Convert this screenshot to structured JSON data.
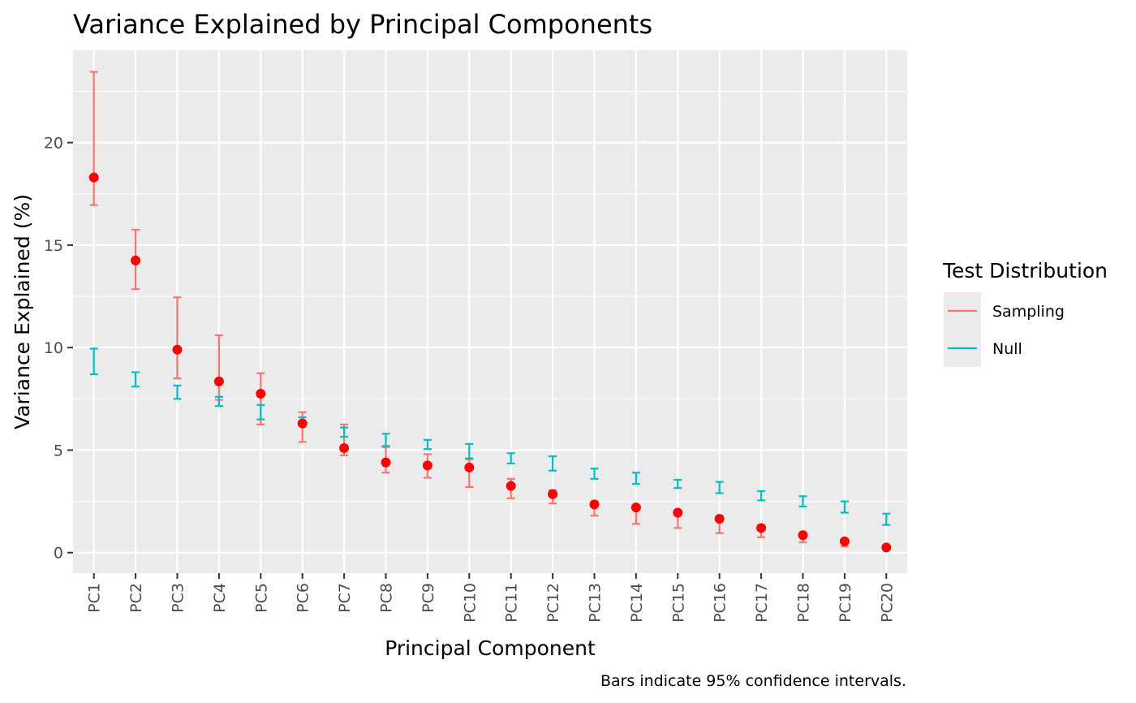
{
  "chart_data": {
    "type": "scatter",
    "title": "Variance Explained by Principal Components",
    "xlabel": "Principal Component",
    "ylabel": "Variance Explained (%)",
    "caption": "Bars indicate 95% confidence intervals.",
    "categories": [
      "PC1",
      "PC2",
      "PC3",
      "PC4",
      "PC5",
      "PC6",
      "PC7",
      "PC8",
      "PC9",
      "PC10",
      "PC11",
      "PC12",
      "PC13",
      "PC14",
      "PC15",
      "PC16",
      "PC17",
      "PC18",
      "PC19",
      "PC20"
    ],
    "ylim": [
      -1,
      24.5
    ],
    "yticks": [
      0,
      5,
      10,
      15,
      20
    ],
    "yticklabels": [
      "0",
      "5",
      "10",
      "15",
      "20"
    ],
    "grid": true,
    "points": {
      "color": "#ff0000",
      "values": [
        18.3,
        14.25,
        9.9,
        8.35,
        7.75,
        6.3,
        5.1,
        4.4,
        4.25,
        4.15,
        3.25,
        2.85,
        2.35,
        2.2,
        1.95,
        1.65,
        1.2,
        0.85,
        0.55,
        0.25
      ]
    },
    "legend": {
      "title": "Test Distribution",
      "position": "right"
    },
    "series": [
      {
        "name": "Sampling",
        "color": "#f8766d",
        "lower": [
          16.95,
          12.85,
          8.5,
          7.45,
          6.25,
          5.4,
          4.75,
          3.9,
          3.65,
          3.2,
          2.65,
          2.4,
          1.8,
          1.4,
          1.2,
          0.95,
          0.75,
          0.5,
          0.3,
          0.2
        ],
        "upper": [
          23.45,
          15.75,
          12.45,
          10.6,
          8.75,
          6.85,
          6.25,
          5.15,
          4.8,
          4.55,
          3.6,
          3.05,
          2.5,
          2.3,
          2.0,
          1.75,
          1.35,
          0.95,
          0.65,
          0.35
        ]
      },
      {
        "name": "Null",
        "color": "#00bfc4",
        "lower": [
          8.7,
          8.1,
          7.5,
          7.15,
          6.5,
          6.25,
          5.65,
          5.2,
          5.05,
          4.6,
          4.35,
          4.0,
          3.6,
          3.35,
          3.15,
          2.9,
          2.55,
          2.25,
          1.95,
          1.35
        ],
        "upper": [
          9.95,
          8.8,
          8.15,
          7.6,
          7.2,
          6.6,
          6.1,
          5.8,
          5.5,
          5.3,
          4.85,
          4.7,
          4.1,
          3.9,
          3.55,
          3.45,
          3.0,
          2.75,
          2.5,
          1.9
        ]
      }
    ]
  }
}
